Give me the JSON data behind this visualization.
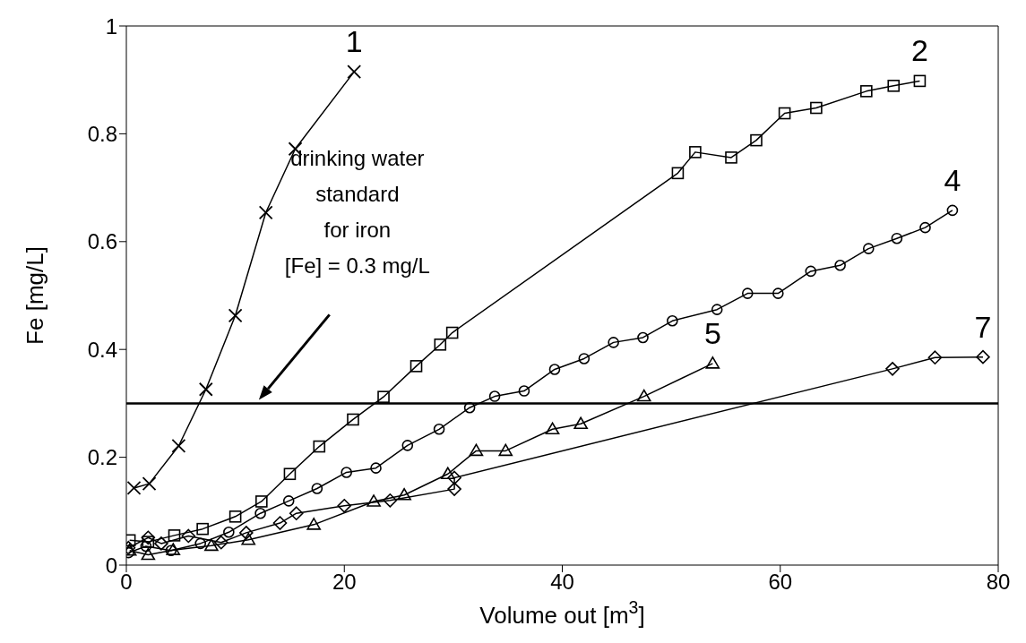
{
  "chart_data": {
    "type": "line",
    "xlabel": "Volume out [m$^{3}$]",
    "ylabel": "Fe  [mg/L]",
    "xlim": [
      0,
      80
    ],
    "xticks": [
      0,
      20,
      40,
      60,
      80
    ],
    "ylim": [
      0,
      1
    ],
    "yticks": [
      0,
      0.2,
      0.4,
      0.6,
      0.8,
      1
    ],
    "grid": false,
    "annotations": [
      "drinking water\nstandard\nfor iron\n[Fe] = 0.3 mg/L"
    ],
    "ref_lines": [
      {
        "axis": "y",
        "value": 0.3,
        "color": "#000000",
        "line_style": "solid"
      }
    ],
    "series": [
      {
        "name": "1",
        "color": "#000000",
        "marker": "cross",
        "x": [
          0.7,
          2.1,
          4.8,
          7.3,
          10.0,
          12.8,
          15.5,
          20.9
        ],
        "values": [
          0.143,
          0.151,
          0.221,
          0.326,
          0.463,
          0.654,
          0.772,
          0.915
        ]
      },
      {
        "name": "2",
        "color": "#000000",
        "marker": "square",
        "x": [
          0.3,
          2.0,
          4.4,
          7.0,
          10.0,
          12.4,
          15.0,
          17.7,
          20.8,
          23.6,
          26.6,
          28.8,
          29.9,
          50.6,
          52.2,
          55.5,
          57.8,
          60.4,
          63.3,
          67.9,
          70.4,
          72.8
        ],
        "values": [
          0.046,
          0.043,
          0.055,
          0.067,
          0.09,
          0.118,
          0.169,
          0.22,
          0.27,
          0.312,
          0.369,
          0.409,
          0.431,
          0.727,
          0.766,
          0.756,
          0.788,
          0.838,
          0.848,
          0.879,
          0.889,
          0.898
        ]
      },
      {
        "name": "4",
        "color": "#000000",
        "marker": "circle",
        "x": [
          0.2,
          1.8,
          4.1,
          6.8,
          9.4,
          12.3,
          14.9,
          17.5,
          20.2,
          22.9,
          25.8,
          28.7,
          31.5,
          33.8,
          36.5,
          39.3,
          42.0,
          44.7,
          47.4,
          50.1,
          54.2,
          57.0,
          59.8,
          62.8,
          65.5,
          68.1,
          70.7,
          73.3,
          75.8
        ],
        "values": [
          0.023,
          0.035,
          0.027,
          0.04,
          0.061,
          0.096,
          0.119,
          0.142,
          0.172,
          0.18,
          0.222,
          0.252,
          0.292,
          0.313,
          0.323,
          0.363,
          0.383,
          0.413,
          0.422,
          0.453,
          0.474,
          0.504,
          0.504,
          0.545,
          0.556,
          0.587,
          0.606,
          0.626,
          0.658
        ]
      },
      {
        "name": "5",
        "color": "#000000",
        "marker": "triangle",
        "x": [
          0.3,
          2.0,
          4.3,
          7.8,
          11.2,
          17.2,
          22.7,
          25.5,
          29.5,
          32.1,
          34.8,
          39.1,
          41.7,
          47.5,
          53.8
        ],
        "values": [
          0.027,
          0.019,
          0.028,
          0.036,
          0.047,
          0.075,
          0.118,
          0.13,
          0.169,
          0.212,
          0.212,
          0.252,
          0.262,
          0.313,
          0.374
        ]
      },
      {
        "name": "7",
        "color": "#000000",
        "marker": "diamond",
        "x": [
          0.2,
          2.0,
          3.2,
          5.7,
          8.7,
          11.0,
          14.1,
          15.6,
          20.0,
          24.2,
          30.1,
          30.1,
          70.3,
          74.2,
          78.6
        ],
        "values": [
          0.032,
          0.051,
          0.04,
          0.054,
          0.042,
          0.06,
          0.078,
          0.096,
          0.11,
          0.12,
          0.141,
          0.162,
          0.364,
          0.385,
          0.386
        ]
      }
    ]
  }
}
